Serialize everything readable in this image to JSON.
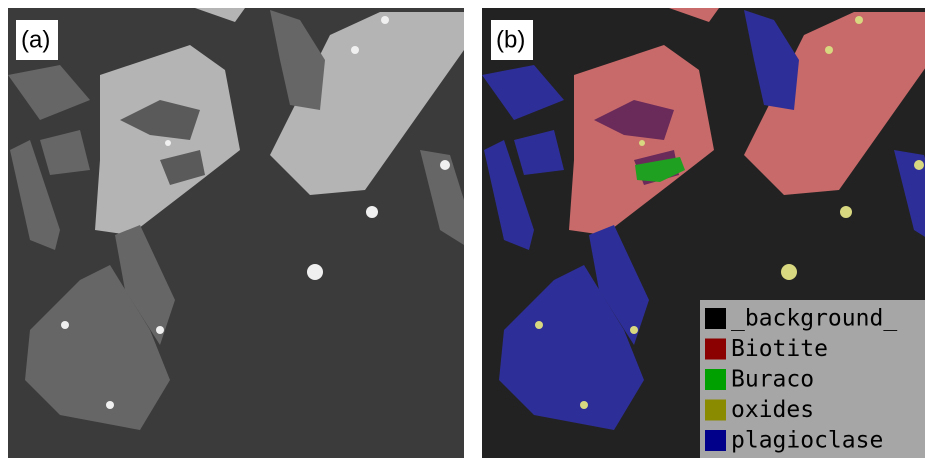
{
  "panels": [
    {
      "label": "(a)"
    },
    {
      "label": "(b)"
    }
  ],
  "legend": {
    "items": [
      {
        "label": "_background_",
        "color": "#000000"
      },
      {
        "label": "Biotite",
        "color": "#8b0000"
      },
      {
        "label": "Buraco",
        "color": "#00a000"
      },
      {
        "label": "oxides",
        "color": "#8b8b00"
      },
      {
        "label": "plagioclase",
        "color": "#00008b"
      }
    ]
  }
}
